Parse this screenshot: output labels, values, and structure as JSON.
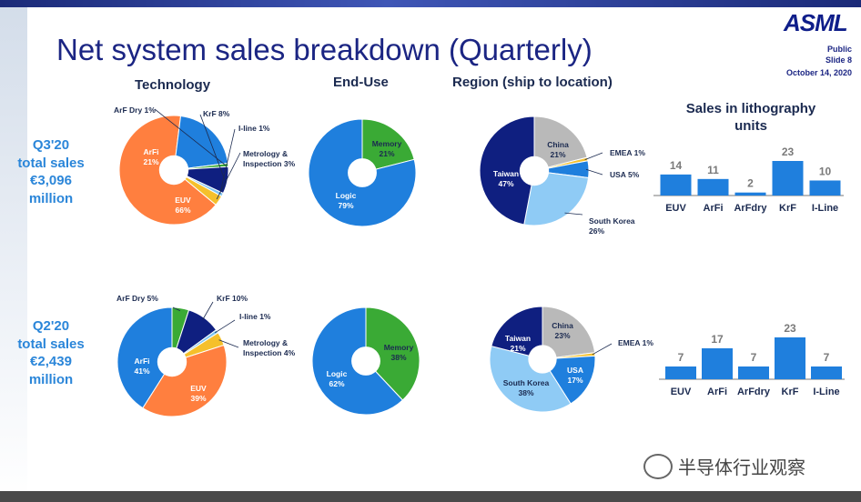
{
  "slide": {
    "title": "Net system sales breakdown (Quarterly)",
    "logo": "ASML",
    "classification": "Public",
    "slide_number": "Slide 8",
    "date": "October 14, 2020",
    "watermark": "半导体行业观察"
  },
  "columns": {
    "technology": "Technology",
    "end_use": "End-Use",
    "region": "Region (ship to location)",
    "units": "Sales in lithography\nunits"
  },
  "rows": {
    "q3": "Q3'20\ntotal sales\n€3,096\nmillion",
    "q2": "Q2'20\ntotal sales\n€2,439\nmillion"
  },
  "colors": {
    "title": "#1b2583",
    "row_label": "#2b86d9",
    "euv": "#ff7f3f",
    "arfi": "#1f7fdd",
    "arf_dry": "#3aaa35",
    "krf": "#0f1f80",
    "i_line": "#7dc4f0",
    "metrology": "#f5c02b",
    "memory": "#3aaa35",
    "logic": "#1f7fdd",
    "china": "#b9b9b9",
    "emea": "#f5c02b",
    "usa": "#1f7fdd",
    "south_korea": "#8fcbf5",
    "taiwan": "#0f1f80",
    "bars": "#1f7fdd"
  },
  "chart_data": [
    {
      "id": "q3-technology",
      "type": "pie",
      "labels": [
        "EUV",
        "ArFi",
        "ArF Dry",
        "KrF",
        "I-line",
        "Metrology & Inspection"
      ],
      "values": [
        66,
        21,
        1,
        8,
        1,
        3
      ],
      "label_text": [
        "EUV\n66%",
        "ArFi\n21%",
        "ArF Dry 1%",
        "KrF 8%",
        "I-line 1%",
        "Metrology &\nInspection 3%"
      ]
    },
    {
      "id": "q3-end-use",
      "type": "pie",
      "labels": [
        "Memory",
        "Logic"
      ],
      "values": [
        21,
        79
      ],
      "label_text": [
        "Memory\n21%",
        "Logic\n79%"
      ]
    },
    {
      "id": "q3-region",
      "type": "pie",
      "labels": [
        "China",
        "EMEA",
        "USA",
        "South Korea",
        "Taiwan"
      ],
      "values": [
        21,
        1,
        5,
        26,
        47
      ],
      "label_text": [
        "China\n21%",
        "EMEA 1%",
        "USA 5%",
        "South Korea\n26%",
        "Taiwan\n47%"
      ]
    },
    {
      "id": "q3-units",
      "type": "bar",
      "categories": [
        "EUV",
        "ArFi",
        "ArFdry",
        "KrF",
        "I-Line"
      ],
      "values": [
        14,
        11,
        2,
        23,
        10
      ]
    },
    {
      "id": "q2-technology",
      "type": "pie",
      "labels": [
        "ArF Dry",
        "KrF",
        "I-line",
        "Metrology & Inspection",
        "EUV",
        "ArFi"
      ],
      "values": [
        5,
        10,
        1,
        4,
        39,
        41
      ],
      "label_text": [
        "ArF Dry 5%",
        "KrF 10%",
        "I-line 1%",
        "Metrology &\nInspection 4%",
        "EUV\n39%",
        "ArFi\n41%"
      ]
    },
    {
      "id": "q2-end-use",
      "type": "pie",
      "labels": [
        "Memory",
        "Logic"
      ],
      "values": [
        38,
        62
      ],
      "label_text": [
        "Memory\n38%",
        "Logic\n62%"
      ]
    },
    {
      "id": "q2-region",
      "type": "pie",
      "labels": [
        "China",
        "EMEA",
        "USA",
        "South Korea",
        "Taiwan"
      ],
      "values": [
        23,
        1,
        17,
        38,
        21
      ],
      "label_text": [
        "China\n23%",
        "EMEA 1%",
        "USA\n17%",
        "South Korea\n38%",
        "Taiwan\n21%"
      ]
    },
    {
      "id": "q2-units",
      "type": "bar",
      "categories": [
        "EUV",
        "ArFi",
        "ArFdry",
        "KrF",
        "I-Line"
      ],
      "values": [
        7,
        17,
        7,
        23,
        7
      ]
    }
  ]
}
